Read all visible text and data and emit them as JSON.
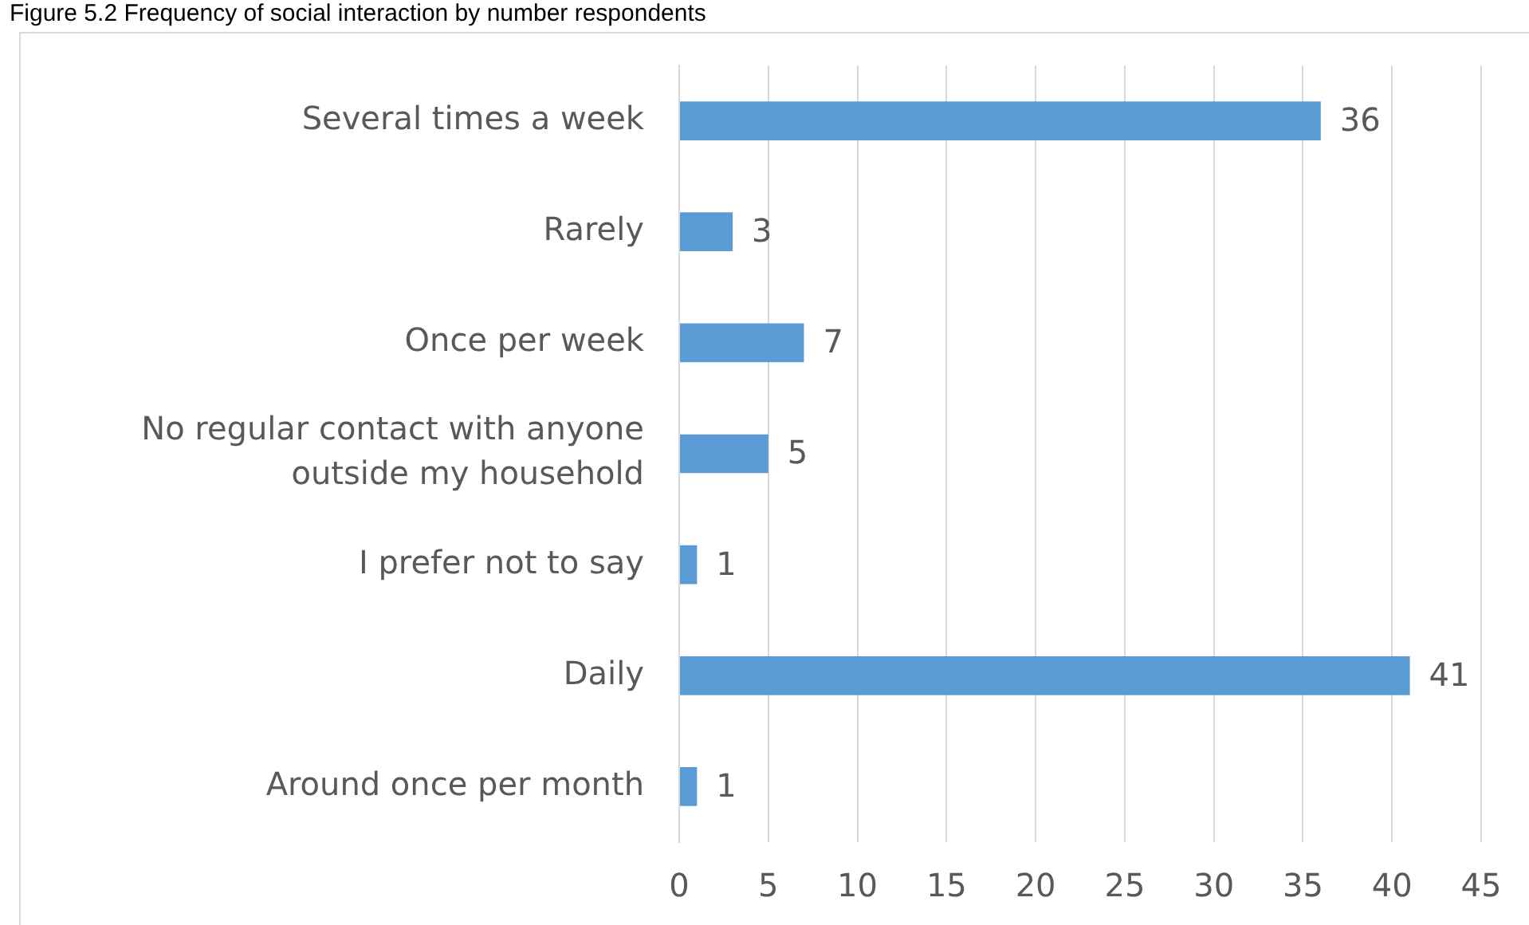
{
  "chart_data": {
    "type": "bar",
    "title": "Figure 5.2 Frequency of social interaction by number respondents",
    "orientation": "horizontal",
    "categories": [
      "Several times a week",
      "Rarely",
      "Once per week",
      "No regular contact with anyone outside my household",
      "I prefer not to say",
      "Daily",
      "Around once per month"
    ],
    "values": [
      36,
      3,
      7,
      5,
      1,
      41,
      1
    ],
    "color": "#5b9bd5",
    "xlim": [
      0,
      45
    ],
    "xticks": [
      0,
      5,
      10,
      15,
      20,
      25,
      30,
      35,
      40,
      45
    ],
    "grid": "x",
    "data_labels": true
  }
}
